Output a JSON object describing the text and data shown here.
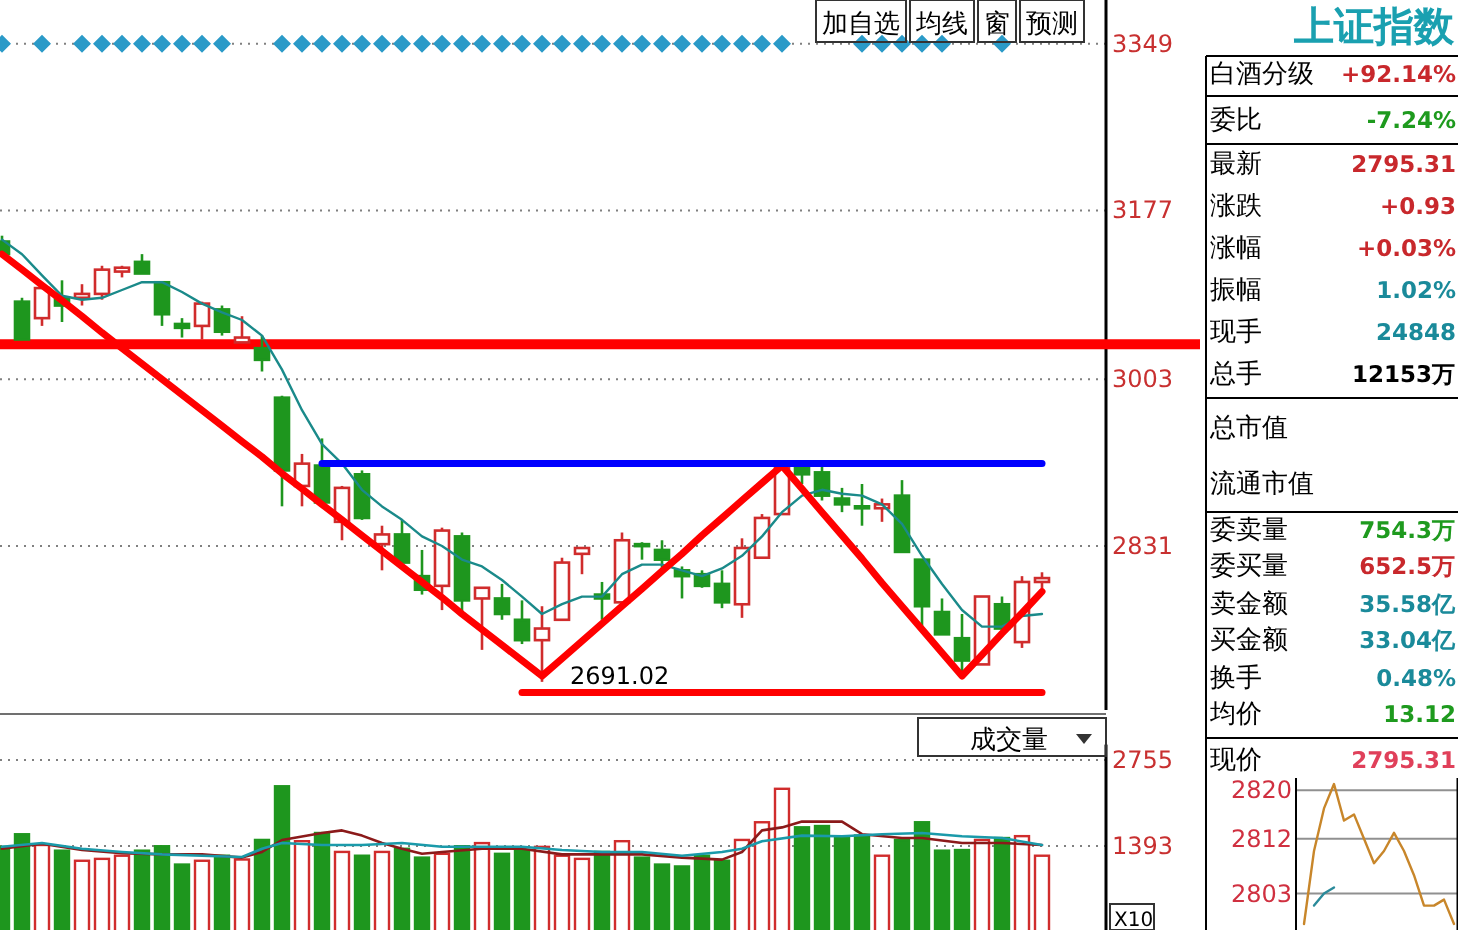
{
  "chart_data": [
    {
      "type": "candlestick",
      "categories": [
        null,
        null,
        null,
        null,
        null,
        null,
        null,
        null,
        null,
        null,
        null,
        null,
        null,
        null,
        null,
        null,
        null,
        null,
        null,
        null,
        null,
        null,
        null,
        null,
        null,
        null,
        null,
        null,
        null,
        null,
        null,
        null,
        null,
        null,
        null,
        null,
        null,
        null,
        null,
        null,
        null,
        null,
        null,
        null,
        null,
        null,
        null,
        null,
        null,
        null,
        null,
        null,
        null
      ],
      "ohlc": [
        [
          3145,
          3151,
          3130,
          3132
        ],
        [
          3083,
          3087,
          3044,
          3044
        ],
        [
          3066,
          3099,
          3058,
          3097
        ],
        [
          3087,
          3105,
          3062,
          3079
        ],
        [
          3087,
          3101,
          3079,
          3091
        ],
        [
          3091,
          3120,
          3085,
          3116
        ],
        [
          3114,
          3120,
          3108,
          3118
        ],
        [
          3124,
          3132,
          3112,
          3112
        ],
        [
          3103,
          3103,
          3058,
          3070
        ],
        [
          3060,
          3066,
          3046,
          3056
        ],
        [
          3058,
          3083,
          3044,
          3081
        ],
        [
          3075,
          3079,
          3048,
          3052
        ],
        [
          3041,
          3068,
          3041,
          3046
        ],
        [
          3035,
          3048,
          3011,
          3023
        ],
        [
          2984,
          2986,
          2872,
          2909
        ],
        [
          2893,
          2926,
          2872,
          2916
        ],
        [
          2914,
          2942,
          2874,
          2876
        ],
        [
          2856,
          2893,
          2837,
          2891
        ],
        [
          2905,
          2909,
          2858,
          2860
        ],
        [
          2833,
          2852,
          2806,
          2843
        ],
        [
          2843,
          2858,
          2814,
          2814
        ],
        [
          2800,
          2827,
          2781,
          2786
        ],
        [
          2790,
          2850,
          2765,
          2847
        ],
        [
          2841,
          2845,
          2761,
          2775
        ],
        [
          2777,
          2788,
          2724,
          2788
        ],
        [
          2777,
          2792,
          2755,
          2761
        ],
        [
          2755,
          2775,
          2730,
          2734
        ],
        [
          2734,
          2769,
          2691.02,
          2746
        ],
        [
          2755,
          2819,
          2755,
          2814
        ],
        [
          2823,
          2829,
          2802,
          2829
        ],
        [
          2781,
          2794,
          2755,
          2777
        ],
        [
          2773,
          2845,
          2773,
          2837
        ],
        [
          2833,
          2835,
          2817,
          2831
        ],
        [
          2827,
          2837,
          2808,
          2817
        ],
        [
          2806,
          2810,
          2777,
          2800
        ],
        [
          2802,
          2806,
          2788,
          2790
        ],
        [
          2792,
          2806,
          2767,
          2773
        ],
        [
          2771,
          2839,
          2757,
          2829
        ],
        [
          2819,
          2864,
          2819,
          2860
        ],
        [
          2864,
          2914,
          2864,
          2914
        ],
        [
          2914,
          2916,
          2895,
          2905
        ],
        [
          2907,
          2914,
          2878,
          2883
        ],
        [
          2880,
          2891,
          2866,
          2874
        ],
        [
          2872,
          2895,
          2852,
          2870
        ],
        [
          2870,
          2880,
          2856,
          2874
        ],
        [
          2883,
          2899,
          2825,
          2825
        ],
        [
          2817,
          2817,
          2748,
          2769
        ],
        [
          2763,
          2777,
          2740,
          2740
        ],
        [
          2736,
          2761,
          2697,
          2713
        ],
        [
          2709,
          2779,
          2709,
          2779
        ],
        [
          2771,
          2779,
          2744,
          2746
        ],
        [
          2732,
          2800,
          2726,
          2794
        ],
        [
          2794,
          2804,
          2781,
          2798
        ]
      ],
      "colors": [
        "#1e961e",
        "#1e961e",
        "#d02c2c",
        "#1e961e",
        "#d02c2c",
        "#d02c2c",
        "#d02c2c",
        "#1e961e",
        "#1e961e",
        "#1e961e",
        "#d02c2c",
        "#1e961e",
        "#d02c2c",
        "#1e961e",
        "#1e961e",
        "#d02c2c",
        "#1e961e",
        "#d02c2c",
        "#1e961e",
        "#d02c2c",
        "#1e961e",
        "#1e961e",
        "#d02c2c",
        "#1e961e",
        "#d02c2c",
        "#1e961e",
        "#1e961e",
        "#d02c2c",
        "#d02c2c",
        "#d02c2c",
        "#1e961e",
        "#d02c2c",
        "#1e961e",
        "#1e961e",
        "#1e961e",
        "#1e961e",
        "#1e961e",
        "#d02c2c",
        "#d02c2c",
        "#d02c2c",
        "#1e961e",
        "#1e961e",
        "#1e961e",
        "#1e961e",
        "#d02c2c",
        "#1e961e",
        "#1e961e",
        "#1e961e",
        "#1e961e",
        "#d02c2c",
        "#1e961e",
        "#d02c2c",
        "#d02c2c"
      ],
      "series": [
        {
          "type": "line",
          "color": "#1a8a8a",
          "values": [
            3147,
            3132,
            3110,
            3089,
            3085,
            3087,
            3095,
            3103,
            3103,
            3093,
            3081,
            3072,
            3064,
            3048,
            3013,
            2971,
            2936,
            2916,
            2889,
            2872,
            2858,
            2841,
            2831,
            2817,
            2810,
            2796,
            2779,
            2761,
            2771,
            2779,
            2779,
            2802,
            2812,
            2812,
            2806,
            2800,
            2808,
            2821,
            2841,
            2866,
            2883,
            2889,
            2885,
            2883,
            2874,
            2854,
            2821,
            2792,
            2765,
            2748,
            2748,
            2759,
            2761
          ]
        },
        {
          "type": "line",
          "color": "#ff0000",
          "values": [
            3132,
            3116,
            3100,
            3084,
            3068,
            3051,
            3035,
            3019,
            3003,
            2987,
            2971,
            2955,
            2939,
            2923,
            2906,
            2890,
            2874,
            2858,
            2842,
            2826,
            2810,
            2794,
            2778,
            2761,
            2745,
            2729,
            2713,
            2697,
            2715,
            2733,
            2751,
            2769,
            2787,
            2805,
            2823,
            2842,
            2860,
            2878,
            2896,
            2914,
            2890,
            2866,
            2842,
            2818,
            2793,
            2769,
            2745,
            2721,
            2697,
            2719,
            2741,
            2762,
            2784
          ]
        },
        {
          "type": "line",
          "color": "#0000ff",
          "values": [
            null,
            null,
            null,
            null,
            null,
            null,
            null,
            null,
            null,
            null,
            null,
            null,
            null,
            null,
            null,
            null,
            2916,
            2916,
            2916,
            2916,
            2916,
            2916,
            2916,
            2916,
            2916,
            2916,
            2916,
            2916,
            2916,
            2916,
            2916,
            2916,
            2916,
            2916,
            2916,
            2916,
            2916,
            2916,
            2916,
            2916,
            2916,
            2916,
            2916,
            2916,
            2916,
            2916,
            2916,
            2916,
            2916,
            2916,
            2916,
            2916,
            2916
          ]
        },
        {
          "type": "line",
          "color": "#ff0000",
          "values": [
            null,
            null,
            null,
            null,
            null,
            null,
            null,
            null,
            null,
            null,
            null,
            null,
            null,
            null,
            null,
            null,
            null,
            null,
            null,
            null,
            null,
            null,
            null,
            null,
            null,
            null,
            2680,
            2680,
            2680,
            2680,
            2680,
            2680,
            2680,
            2680,
            2680,
            2680,
            2680,
            2680,
            2680,
            2680,
            2680,
            2680,
            2680,
            2680,
            2680,
            2680,
            2680,
            2680,
            2680,
            2680,
            2680,
            2680,
            2680
          ]
        },
        {
          "type": "scatter",
          "color": "#2a9ac8",
          "marker": "diamond",
          "values": [
            3349,
            null,
            3349,
            null,
            3349,
            3349,
            3349,
            3349,
            3349,
            3349,
            3349,
            3349,
            null,
            null,
            3349,
            3349,
            3349,
            3349,
            3349,
            3349,
            3349,
            3349,
            3349,
            3349,
            3349,
            3349,
            3349,
            3349,
            3349,
            3349,
            3349,
            3349,
            3349,
            3349,
            3349,
            3349,
            3349,
            3349,
            3349,
            3349,
            null,
            null,
            null,
            3349,
            3349,
            3349,
            3349,
            3349,
            null,
            null,
            3349,
            null,
            null
          ]
        }
      ],
      "ref_lines": [
        {
          "axis": "y",
          "value": 3039,
          "color": "#ff0000"
        }
      ],
      "ylim": [
        2662,
        3394
      ],
      "yticks": [
        3349,
        3177,
        3003,
        2831
      ],
      "grid": "y",
      "tick_labels": "y",
      "annotations": [
        "加自选",
        "均线",
        "窗",
        "预测",
        "2691.02"
      ]
    },
    {
      "type": "bar",
      "title": "成交量",
      "categories": [
        null,
        null,
        null,
        null,
        null,
        null,
        null,
        null,
        null,
        null,
        null,
        null,
        null,
        null,
        null,
        null,
        null,
        null,
        null,
        null,
        null,
        null,
        null,
        null,
        null,
        null,
        null,
        null,
        null,
        null,
        null,
        null,
        null,
        null,
        null,
        null,
        null,
        null,
        null,
        null,
        null,
        null,
        null,
        null,
        null,
        null,
        null,
        null,
        null,
        null,
        null,
        null,
        null
      ],
      "series": [
        {
          "values": [
            1380,
            1580,
            1410,
            1320,
            1160,
            1190,
            1240,
            1320,
            1390,
            1100,
            1160,
            1240,
            1180,
            1490,
            2340,
            1470,
            1600,
            1300,
            1240,
            1300,
            1350,
            1210,
            1270,
            1390,
            1440,
            1270,
            1330,
            1380,
            1240,
            1190,
            1300,
            1470,
            1210,
            1100,
            1070,
            1240,
            1160,
            1490,
            1770,
            2300,
            1690,
            1710,
            1520,
            1560,
            1240,
            1490,
            1770,
            1320,
            1330,
            1490,
            1520,
            1550,
            1240
          ],
          "colors": [
            "#1e961e",
            "#1e961e",
            "#d02c2c",
            "#1e961e",
            "#d02c2c",
            "#d02c2c",
            "#d02c2c",
            "#1e961e",
            "#1e961e",
            "#1e961e",
            "#d02c2c",
            "#1e961e",
            "#d02c2c",
            "#1e961e",
            "#1e961e",
            "#d02c2c",
            "#1e961e",
            "#d02c2c",
            "#1e961e",
            "#d02c2c",
            "#1e961e",
            "#1e961e",
            "#d02c2c",
            "#1e961e",
            "#d02c2c",
            "#1e961e",
            "#1e961e",
            "#d02c2c",
            "#d02c2c",
            "#d02c2c",
            "#1e961e",
            "#d02c2c",
            "#1e961e",
            "#1e961e",
            "#1e961e",
            "#1e961e",
            "#1e961e",
            "#d02c2c",
            "#d02c2c",
            "#d02c2c",
            "#1e961e",
            "#1e961e",
            "#1e961e",
            "#1e961e",
            "#d02c2c",
            "#1e961e",
            "#1e961e",
            "#1e961e",
            "#1e961e",
            "#d02c2c",
            "#1e961e",
            "#d02c2c",
            "#d02c2c"
          ]
        },
        {
          "type": "line",
          "color": "#8b1a1a",
          "values": [
            1350,
            null,
            1430,
            null,
            1330,
            null,
            1280,
            null,
            1260,
            null,
            1260,
            null,
            1210,
            1300,
            1490,
            null,
            1600,
            1640,
            1560,
            1440,
            1350,
            1270,
            1300,
            null,
            1350,
            null,
            1350,
            null,
            1260,
            null,
            1260,
            null,
            1260,
            null,
            1210,
            null,
            1180,
            1300,
            1640,
            1690,
            1780,
            null,
            1780,
            1580,
            null,
            1520,
            1520,
            null,
            1440,
            null,
            1440,
            null,
            1410
          ]
        },
        {
          "type": "line",
          "color": "#1a9aaa",
          "values": [
            1380,
            null,
            1440,
            null,
            1350,
            null,
            1300,
            null,
            1260,
            null,
            1240,
            null,
            1220,
            1350,
            1440,
            null,
            1410,
            null,
            1410,
            null,
            1440,
            null,
            1380,
            null,
            1380,
            null,
            1380,
            null,
            1330,
            null,
            1300,
            null,
            1300,
            null,
            1240,
            null,
            1300,
            1350,
            1470,
            null,
            1560,
            null,
            1550,
            null,
            1580,
            null,
            1600,
            null,
            1550,
            null,
            1520,
            null,
            1410
          ]
        }
      ],
      "ylim": [
        0,
        3000
      ],
      "yticks": [
        2755,
        1393
      ],
      "grid": "y",
      "tick_labels": "y",
      "annotations": [
        "X10"
      ]
    },
    {
      "type": "other",
      "title": "上证指数",
      "categories": [
        "白酒分级",
        "委比",
        "最新",
        "涨跌",
        "涨幅",
        "振幅",
        "现手",
        "总手",
        "总市值",
        "流通市值",
        "委卖量",
        "委买量",
        "卖金额",
        "买金额",
        "换手",
        "均价",
        "现价"
      ],
      "value_labels": [
        "+92.14%",
        "-7.24%",
        "2795.31",
        "+0.93",
        "+0.03%",
        "1.02%",
        "24848",
        "12153万",
        null,
        null,
        "754.3万",
        "652.5万",
        "35.58亿",
        "33.04亿",
        "0.48%",
        "13.12",
        "2795.31"
      ],
      "colors": [
        "#c8282c",
        "#1e9a1e",
        "#c8282c",
        "#c8282c",
        "#c8282c",
        "#1a8a9a",
        "#1a8a9a",
        "#000000",
        "#000000",
        "#000000",
        "#1e9a1e",
        "#c8282c",
        "#1a8a9a",
        "#1a8a9a",
        "#1a8a9a",
        "#1e9a1e",
        "#e0405a"
      ]
    },
    {
      "type": "line",
      "categories": [
        null,
        null,
        null,
        null,
        null,
        null,
        null,
        null,
        null,
        null,
        null,
        null,
        null,
        null,
        null,
        null
      ],
      "series": [
        {
          "color": "#c8862a",
          "values": [
            2798,
            2810,
            2817,
            2821,
            2815,
            2816,
            2812,
            2808,
            2810,
            2813,
            2810,
            2806,
            2801,
            2801,
            2802,
            2798
          ]
        },
        {
          "color": "#2a8a9a",
          "values": [
            null,
            2801,
            2803,
            2804,
            null,
            null,
            null,
            null,
            null,
            null,
            null,
            null,
            null,
            null,
            null,
            null
          ]
        }
      ],
      "ylim": [
        2797,
        2822
      ],
      "yticks": [
        2820,
        2812,
        2803
      ],
      "grid": "y",
      "tick_labels": "y"
    }
  ]
}
